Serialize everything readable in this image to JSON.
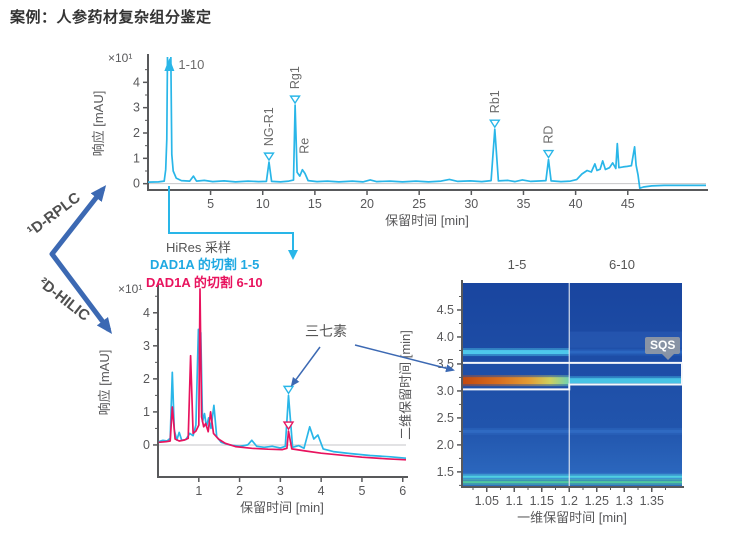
{
  "title": "案例：人参药材复杂组分鉴定",
  "colors": {
    "trace_cyan": "#29b6e8",
    "trace_pink": "#e8135e",
    "arrow_blue": "#3c69b3",
    "axis_gray": "#58595b",
    "text_gray": "#555555",
    "heatmap_background": "#1d4ca5"
  },
  "flow": {
    "dim1_label": "¹D-RPLC",
    "dim2_label": "²D-HILIC",
    "hires_label": "HiRes 采样"
  },
  "chart_data": [
    {
      "id": "rplc1d",
      "type": "line",
      "xlabel": "保留时间 [min]",
      "ylabel": "响应 [mAU]",
      "y_scale_note": "×10¹",
      "xlim": [
        -1,
        52.5
      ],
      "ylim": [
        -0.25,
        5.0
      ],
      "xticks": [
        5,
        10,
        15,
        20,
        25,
        30,
        35,
        40,
        45
      ],
      "yticks": [
        0,
        1,
        2,
        3,
        4
      ],
      "series": [
        {
          "color": "#29b6e8",
          "points": [
            [
              -1,
              0.06
            ],
            [
              0,
              0.07
            ],
            [
              0.55,
              0.1
            ],
            [
              0.7,
              0.55
            ],
            [
              0.8,
              1.75
            ],
            [
              0.88,
              5.6
            ],
            [
              1.18,
              5.6
            ],
            [
              1.28,
              1.15
            ],
            [
              1.42,
              0.5
            ],
            [
              1.7,
              0.22
            ],
            [
              2.2,
              0.12
            ],
            [
              3.0,
              0.1
            ],
            [
              3.35,
              0.3
            ],
            [
              3.65,
              0.1
            ],
            [
              4.4,
              0.13
            ],
            [
              5.2,
              0.08
            ],
            [
              6.3,
              0.11
            ],
            [
              7.4,
              0.07
            ],
            [
              8.6,
              0.1
            ],
            [
              9.6,
              0.08
            ],
            [
              10.35,
              0.09
            ],
            [
              10.6,
              0.85
            ],
            [
              10.85,
              0.09
            ],
            [
              11.7,
              0.07
            ],
            [
              12.5,
              0.1
            ],
            [
              12.95,
              0.14
            ],
            [
              13.1,
              3.1
            ],
            [
              13.3,
              0.45
            ],
            [
              13.55,
              0.3
            ],
            [
              13.8,
              0.55
            ],
            [
              14.05,
              0.4
            ],
            [
              14.35,
              0.12
            ],
            [
              15.2,
              0.08
            ],
            [
              16.2,
              0.1
            ],
            [
              17.3,
              0.07
            ],
            [
              18.6,
              0.1
            ],
            [
              19.6,
              0.07
            ],
            [
              20.3,
              0.15
            ],
            [
              20.9,
              0.08
            ],
            [
              22.2,
              0.1
            ],
            [
              23.4,
              0.07
            ],
            [
              24.7,
              0.1
            ],
            [
              25.9,
              0.07
            ],
            [
              27.1,
              0.1
            ],
            [
              27.9,
              0.17
            ],
            [
              28.7,
              0.09
            ],
            [
              29.9,
              0.11
            ],
            [
              31.0,
              0.08
            ],
            [
              31.9,
              0.12
            ],
            [
              32.25,
              2.15
            ],
            [
              32.6,
              0.11
            ],
            [
              33.5,
              0.13
            ],
            [
              34.2,
              0.08
            ],
            [
              34.9,
              0.15
            ],
            [
              35.7,
              0.09
            ],
            [
              36.7,
              0.11
            ],
            [
              37.15,
              0.12
            ],
            [
              37.4,
              0.95
            ],
            [
              37.65,
              0.11
            ],
            [
              38.6,
              0.08
            ],
            [
              39.5,
              0.1
            ],
            [
              40.1,
              0.16
            ],
            [
              40.6,
              0.38
            ],
            [
              41.1,
              0.52
            ],
            [
              41.5,
              0.46
            ],
            [
              41.85,
              0.78
            ],
            [
              42.05,
              0.52
            ],
            [
              42.35,
              0.57
            ],
            [
              42.6,
              0.9
            ],
            [
              42.85,
              0.56
            ],
            [
              43.25,
              0.63
            ],
            [
              43.55,
              0.82
            ],
            [
              43.85,
              0.6
            ],
            [
              44.0,
              1.58
            ],
            [
              44.15,
              0.63
            ],
            [
              44.55,
              0.66
            ],
            [
              44.95,
              0.68
            ],
            [
              45.35,
              0.71
            ],
            [
              45.65,
              1.45
            ],
            [
              45.8,
              0.73
            ],
            [
              45.98,
              0.35
            ],
            [
              46.15,
              -0.18
            ],
            [
              46.5,
              -0.13
            ],
            [
              47.3,
              -0.09
            ],
            [
              48.5,
              -0.07
            ],
            [
              52.5,
              -0.07
            ]
          ]
        }
      ],
      "peaks": [
        {
          "label": "1-10",
          "x": 1.05,
          "y": 5.5,
          "marker": "arrow-up",
          "vertical": false
        },
        {
          "label": "NG-R1",
          "x": 10.6,
          "y": 0.85,
          "marker": "tri-down",
          "vertical": true
        },
        {
          "label": "Rg1",
          "x": 13.1,
          "y": 3.1,
          "marker": "tri-down",
          "vertical": true
        },
        {
          "label": "Re",
          "x": 14.0,
          "y": 0.55,
          "marker": "none",
          "vertical": true
        },
        {
          "label": "Rb1",
          "x": 32.25,
          "y": 2.15,
          "marker": "tri-down",
          "vertical": true
        },
        {
          "label": "RD",
          "x": 37.4,
          "y": 0.95,
          "marker": "tri-down",
          "vertical": true
        }
      ]
    },
    {
      "id": "hilic2d",
      "type": "line",
      "xlabel": "保留时间 [min]",
      "ylabel": "响应 [mAU]",
      "y_scale_note": "×10¹",
      "xlim": [
        0,
        6.08
      ],
      "ylim": [
        -0.97,
        4.75
      ],
      "xticks": [
        1,
        2,
        3,
        4,
        5,
        6
      ],
      "yticks": [
        0,
        1,
        2,
        3,
        4
      ],
      "annotation": "三七素",
      "series": [
        {
          "legend": "DAD1A 的切割 1-5",
          "color": "#29b6e8",
          "points": [
            [
              0.02,
              0.1
            ],
            [
              0.12,
              0.14
            ],
            [
              0.22,
              0.12
            ],
            [
              0.3,
              0.2
            ],
            [
              0.35,
              2.2
            ],
            [
              0.4,
              0.45
            ],
            [
              0.46,
              0.15
            ],
            [
              0.52,
              0.38
            ],
            [
              0.58,
              0.14
            ],
            [
              0.68,
              0.16
            ],
            [
              0.78,
              0.35
            ],
            [
              0.86,
              0.28
            ],
            [
              0.93,
              0.6
            ],
            [
              0.99,
              3.5
            ],
            [
              1.02,
              2.75
            ],
            [
              1.05,
              3.4
            ],
            [
              1.09,
              0.7
            ],
            [
              1.14,
              0.95
            ],
            [
              1.19,
              0.55
            ],
            [
              1.24,
              0.82
            ],
            [
              1.3,
              0.5
            ],
            [
              1.37,
              1.2
            ],
            [
              1.44,
              0.25
            ],
            [
              1.55,
              0.08
            ],
            [
              1.75,
              0.0
            ],
            [
              2.0,
              -0.04
            ],
            [
              2.2,
              0.0
            ],
            [
              2.3,
              0.14
            ],
            [
              2.42,
              -0.04
            ],
            [
              2.6,
              -0.07
            ],
            [
              2.8,
              -0.04
            ],
            [
              3.0,
              -0.09
            ],
            [
              3.12,
              -0.04
            ],
            [
              3.2,
              1.5
            ],
            [
              3.3,
              -0.07
            ],
            [
              3.45,
              -0.02
            ],
            [
              3.58,
              -0.1
            ],
            [
              3.72,
              0.55
            ],
            [
              3.82,
              0.18
            ],
            [
              3.92,
              0.3
            ],
            [
              4.05,
              -0.12
            ],
            [
              4.3,
              -0.2
            ],
            [
              4.7,
              -0.26
            ],
            [
              5.2,
              -0.32
            ],
            [
              5.7,
              -0.36
            ],
            [
              6.08,
              -0.4
            ]
          ]
        },
        {
          "legend": "DAD1A 的切割 6-10",
          "color": "#e8135e",
          "points": [
            [
              0.02,
              0.08
            ],
            [
              0.2,
              0.1
            ],
            [
              0.3,
              0.12
            ],
            [
              0.35,
              1.15
            ],
            [
              0.42,
              0.18
            ],
            [
              0.52,
              0.12
            ],
            [
              0.65,
              0.15
            ],
            [
              0.74,
              0.2
            ],
            [
              0.8,
              2.7
            ],
            [
              0.86,
              0.35
            ],
            [
              0.93,
              0.42
            ],
            [
              1.0,
              0.6
            ],
            [
              1.03,
              4.72
            ],
            [
              1.07,
              0.85
            ],
            [
              1.12,
              0.55
            ],
            [
              1.17,
              0.65
            ],
            [
              1.23,
              0.4
            ],
            [
              1.29,
              1.0
            ],
            [
              1.36,
              0.35
            ],
            [
              1.48,
              0.18
            ],
            [
              1.65,
              0.05
            ],
            [
              1.9,
              -0.05
            ],
            [
              2.3,
              -0.1
            ],
            [
              2.7,
              -0.13
            ],
            [
              3.05,
              -0.14
            ],
            [
              3.16,
              -0.1
            ],
            [
              3.2,
              0.42
            ],
            [
              3.28,
              -0.12
            ],
            [
              3.6,
              -0.18
            ],
            [
              4.0,
              -0.25
            ],
            [
              4.5,
              -0.31
            ],
            [
              5.0,
              -0.37
            ],
            [
              5.6,
              -0.42
            ],
            [
              6.08,
              -0.45
            ]
          ]
        }
      ],
      "markers": [
        {
          "series": 0,
          "x": 3.2,
          "y": 1.5
        },
        {
          "series": 1,
          "x": 3.2,
          "y": 0.42
        }
      ]
    },
    {
      "id": "heatmap2d",
      "type": "heatmap",
      "xlabel": "一维保留时间 [min]",
      "ylabel": "二维保留时间 [min]",
      "xlim": [
        1.005,
        1.405
      ],
      "ylim": [
        1.22,
        5.0
      ],
      "xticks": [
        1.05,
        1.1,
        1.15,
        1.2,
        1.25,
        1.3,
        1.35
      ],
      "yticks": [
        "1.5",
        "2.0",
        "2.5",
        "3.0",
        "3.5",
        "4.0",
        "4.5"
      ],
      "col_labels": [
        "1-5",
        "6-10"
      ],
      "divider_x": 1.2,
      "sqs_label": "SQS",
      "background": "#1d4ca5",
      "zones": [
        {
          "y_from": 1.22,
          "y_to": 1.5,
          "color": "#2e6ac0",
          "opacity": 0.75
        },
        {
          "y_from": 3.8,
          "y_to": 4.1,
          "x_from": 1.2,
          "x_to": 1.405,
          "color": "#2a5cb6",
          "opacity": 0.6
        }
      ],
      "bands": [
        {
          "y": 3.72,
          "x_from": 1.005,
          "x_to": 1.2,
          "color": "#4ec9ec",
          "width": 4
        },
        {
          "y": 3.72,
          "x_from": 1.2,
          "x_to": 1.405,
          "color": "#2b67c1",
          "width": 3
        },
        {
          "y": 3.19,
          "x_from": 1.005,
          "x_to": 1.2,
          "color": "orange-gradient",
          "width": 7
        },
        {
          "y": 3.19,
          "x_from": 1.2,
          "x_to": 1.405,
          "color": "#47c3e5",
          "width": 5
        },
        {
          "y": 2.25,
          "x_from": 1.005,
          "x_to": 1.405,
          "color": "#2f6ac2",
          "width": 3
        },
        {
          "y": 1.41,
          "x_from": 1.005,
          "x_to": 1.405,
          "color": "#4fd0e2",
          "width": 2
        },
        {
          "y": 1.31,
          "x_from": 1.005,
          "x_to": 1.405,
          "color": "#52c9a0",
          "width": 2
        }
      ],
      "selection": {
        "y_top": 3.52,
        "y_bottom_left": 3.03,
        "y_bottom_right": 3.12
      }
    }
  ]
}
